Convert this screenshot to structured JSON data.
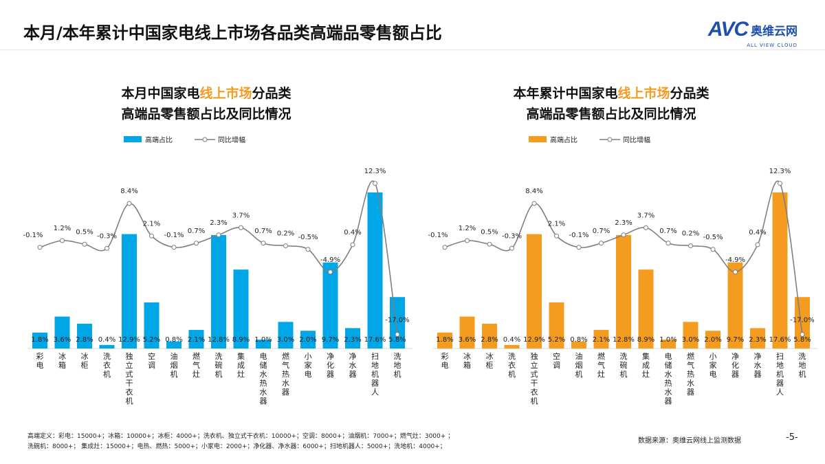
{
  "header": {
    "title": "本月/本年累计中国家电线上市场各品类高端品零售额占比",
    "logo_text": "AVC",
    "logo_cn": "奥维云网",
    "logo_en": "ALL VIEW CLOUD"
  },
  "footer": {
    "definition_line1": "高端定义：彩电：15000+；冰箱：10000+；冰柜：4000+；洗衣机、独立式干衣机：10000+；空调：8000+；油烟机：7000+；燃气灶：3000+ ；",
    "definition_line2": "洗碗机：8000+；  集成灶：15000+；电热、燃热：5000+；小家电：2000+；净化器、净水器：6000+；扫地机器人：5000+；洗地机：4000+；",
    "source": "数据来源：奥维云网线上监测数据",
    "page": "-5-"
  },
  "chart_data": [
    {
      "type": "bar+line",
      "title_part1": "本月中国家电",
      "title_highlight": "线上市场",
      "title_part2": "分品类",
      "title_line2": "高端品零售额占比及同比情况",
      "legend": {
        "bar": "高端占比",
        "line": "同比增幅",
        "placement": "top"
      },
      "bar_color": "#00a6e6",
      "highlight_color": "#f39c1f",
      "line_color": "#7f7f7f",
      "categories": [
        "彩电",
        "冰箱",
        "冰柜",
        "洗衣机",
        "独立式干衣机",
        "空调",
        "油烟机",
        "燃气灶",
        "洗碗机",
        "集成灶",
        "电储水热水器",
        "燃气热水器",
        "小家电",
        "净化器",
        "净水器",
        "扫地机器人",
        "洗地机"
      ],
      "series": [
        {
          "name": "高端占比",
          "type": "bar",
          "values": [
            1.8,
            3.6,
            2.8,
            0.4,
            12.9,
            5.2,
            0.8,
            2.1,
            12.8,
            8.9,
            1.0,
            3.0,
            2.0,
            9.7,
            2.3,
            17.6,
            5.8
          ]
        },
        {
          "name": "同比增幅",
          "type": "line",
          "values": [
            -0.1,
            1.2,
            0.5,
            -0.3,
            8.4,
            2.1,
            -0.1,
            0.7,
            2.3,
            3.7,
            0.7,
            0.2,
            -0.5,
            -4.9,
            0.4,
            12.3,
            -17.0
          ]
        }
      ]
    },
    {
      "type": "bar+line",
      "title_part1": "本年累计中国家电",
      "title_highlight": "线上市场",
      "title_part2": "分品类",
      "title_line2": "高端品零售额占比及同比情况",
      "legend": {
        "bar": "高端占比",
        "line": "同比增幅",
        "placement": "top"
      },
      "bar_color": "#f39c1f",
      "highlight_color": "#f39c1f",
      "line_color": "#7f7f7f",
      "categories": [
        "彩电",
        "冰箱",
        "冰柜",
        "洗衣机",
        "独立式干衣机",
        "空调",
        "油烟机",
        "燃气灶",
        "洗碗机",
        "集成灶",
        "电储水热水器",
        "燃气热水器",
        "小家电",
        "净化器",
        "净水器",
        "扫地机器人",
        "洗地机"
      ],
      "series": [
        {
          "name": "高端占比",
          "type": "bar",
          "values": [
            1.8,
            3.6,
            2.8,
            0.4,
            12.9,
            5.2,
            0.8,
            2.1,
            12.8,
            8.9,
            1.0,
            3.0,
            2.0,
            9.7,
            2.3,
            17.6,
            5.8
          ]
        },
        {
          "name": "同比增幅",
          "type": "line",
          "values": [
            -0.1,
            1.2,
            0.5,
            -0.3,
            8.4,
            2.1,
            -0.1,
            0.7,
            2.3,
            3.7,
            0.7,
            0.2,
            -0.5,
            -4.9,
            0.4,
            12.3,
            -17.0
          ]
        }
      ]
    }
  ]
}
